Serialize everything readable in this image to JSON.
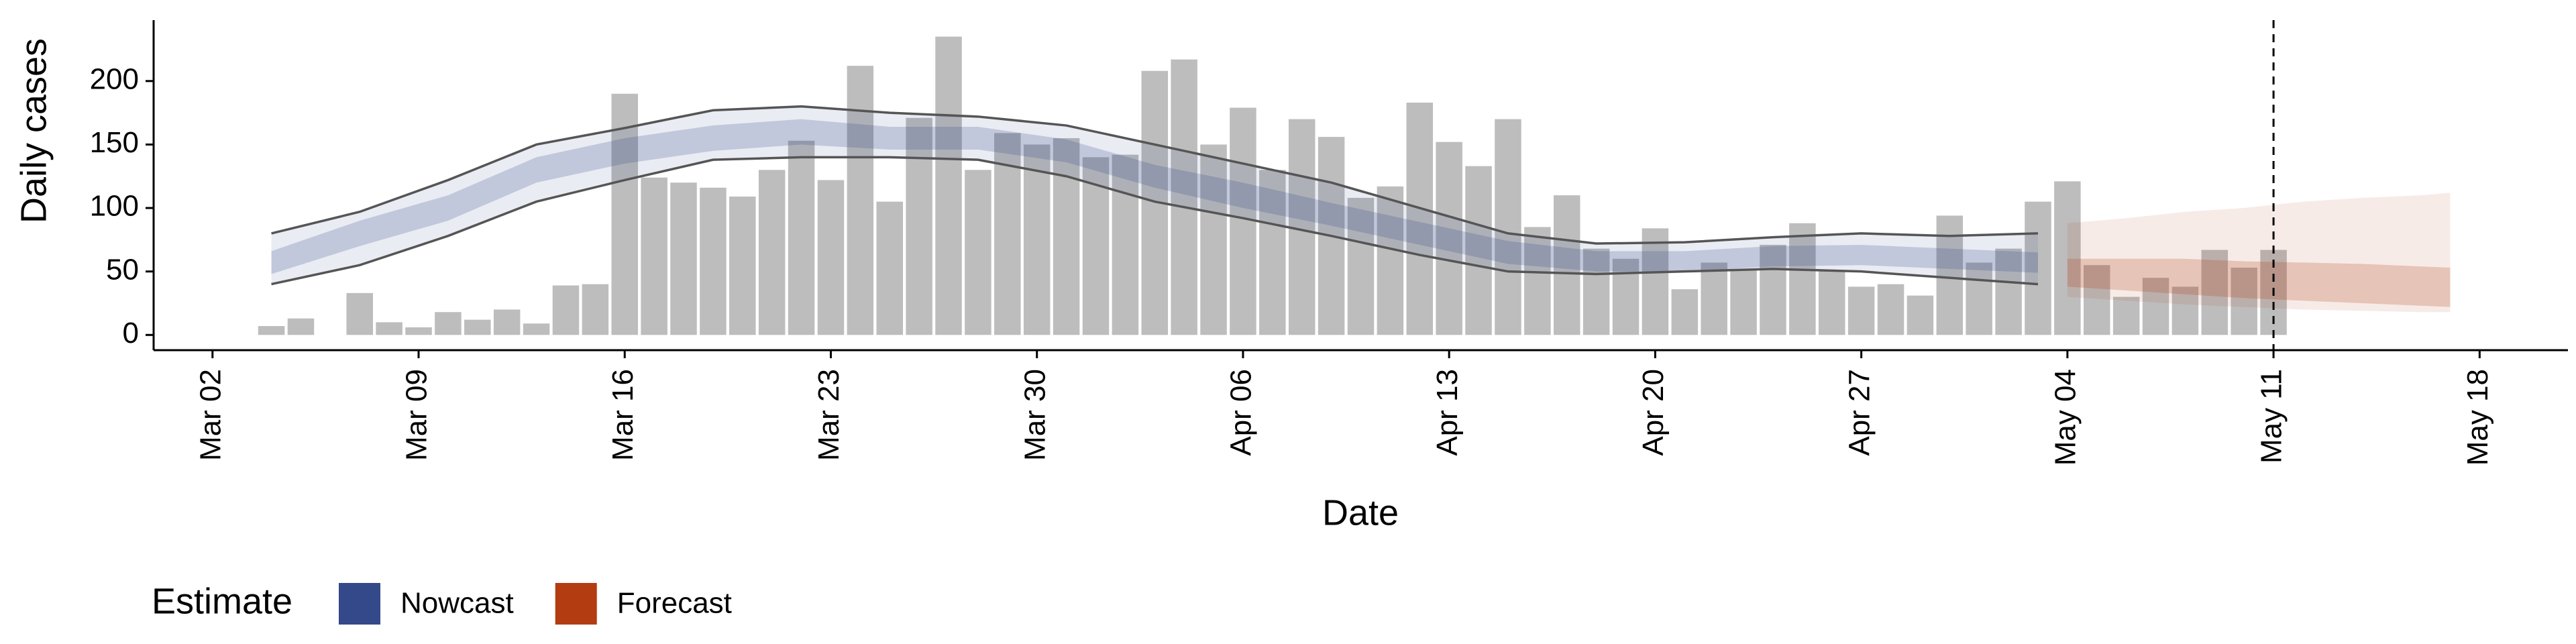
{
  "chart_data": {
    "type": "bar",
    "x_label": "Date",
    "y_label": "Daily cases",
    "xlim": [
      "Feb 29",
      "May 21"
    ],
    "xticks": [
      "Mar 02",
      "Mar 09",
      "Mar 16",
      "Mar 23",
      "Mar 30",
      "Apr 06",
      "Apr 13",
      "Apr 20",
      "Apr 27",
      "May 04",
      "May 11",
      "May 18"
    ],
    "ylim": [
      -12,
      248
    ],
    "yticks": [
      0,
      50,
      100,
      150,
      200
    ],
    "vline": "May 11",
    "bars": {
      "color": "#bdbdbd",
      "x": [
        "Mar 04",
        "Mar 05",
        "Mar 06",
        "Mar 07",
        "Mar 08",
        "Mar 09",
        "Mar 10",
        "Mar 11",
        "Mar 12",
        "Mar 13",
        "Mar 14",
        "Mar 15",
        "Mar 16",
        "Mar 17",
        "Mar 18",
        "Mar 19",
        "Mar 20",
        "Mar 21",
        "Mar 22",
        "Mar 23",
        "Mar 24",
        "Mar 25",
        "Mar 26",
        "Mar 27",
        "Mar 28",
        "Mar 29",
        "Mar 30",
        "Mar 31",
        "Apr 01",
        "Apr 02",
        "Apr 03",
        "Apr 04",
        "Apr 05",
        "Apr 06",
        "Apr 07",
        "Apr 08",
        "Apr 09",
        "Apr 10",
        "Apr 11",
        "Apr 12",
        "Apr 13",
        "Apr 14",
        "Apr 15",
        "Apr 16",
        "Apr 17",
        "Apr 18",
        "Apr 19",
        "Apr 20",
        "Apr 21",
        "Apr 22",
        "Apr 23",
        "Apr 24",
        "Apr 25",
        "Apr 26",
        "Apr 27",
        "Apr 28",
        "Apr 29",
        "Apr 30",
        "May 01",
        "May 02",
        "May 03",
        "May 04",
        "May 05",
        "May 06",
        "May 07",
        "May 08",
        "May 09",
        "May 10",
        "May 11"
      ],
      "values": [
        7,
        13,
        null,
        33,
        10,
        6,
        18,
        12,
        20,
        9,
        39,
        40,
        190,
        124,
        120,
        116,
        109,
        130,
        153,
        122,
        212,
        105,
        171,
        235,
        130,
        159,
        150,
        155,
        140,
        142,
        208,
        217,
        150,
        179,
        130,
        170,
        156,
        108,
        117,
        183,
        152,
        133,
        170,
        85,
        110,
        68,
        60,
        84,
        36,
        57,
        52,
        71,
        88,
        51,
        38,
        40,
        31,
        94,
        57,
        68,
        105,
        121,
        55,
        30,
        45,
        38,
        67,
        53,
        67
      ]
    },
    "legend_title": "Estimate",
    "series": [
      {
        "name": "Nowcast",
        "color": "#34498a",
        "outline_color": "#555555",
        "x": [
          "Mar 04",
          "Mar 07",
          "Mar 10",
          "Mar 13",
          "Mar 16",
          "Mar 19",
          "Mar 22",
          "Mar 25",
          "Mar 28",
          "Mar 31",
          "Apr 03",
          "Apr 06",
          "Apr 09",
          "Apr 12",
          "Apr 15",
          "Apr 18",
          "Apr 21",
          "Apr 24",
          "Apr 27",
          "Apr 30",
          "May 03"
        ],
        "lower_90": [
          40,
          55,
          78,
          105,
          122,
          138,
          140,
          140,
          138,
          125,
          105,
          92,
          78,
          63,
          50,
          48,
          50,
          52,
          50,
          45,
          40
        ],
        "upper_90": [
          80,
          97,
          122,
          150,
          163,
          177,
          180,
          175,
          172,
          165,
          150,
          135,
          120,
          100,
          80,
          72,
          73,
          77,
          80,
          78,
          80
        ],
        "lower_50": [
          48,
          70,
          90,
          120,
          135,
          145,
          150,
          146,
          146,
          136,
          116,
          100,
          86,
          71,
          56,
          50,
          50,
          54,
          55,
          52,
          49
        ],
        "upper_50": [
          66,
          90,
          110,
          140,
          155,
          165,
          170,
          164,
          164,
          154,
          134,
          120,
          104,
          89,
          74,
          66,
          66,
          70,
          71,
          68,
          65
        ]
      },
      {
        "name": "Forecast",
        "color": "#b33c10",
        "x": [
          "May 04",
          "May 06",
          "May 08",
          "May 10",
          "May 12",
          "May 14",
          "May 16",
          "May 17"
        ],
        "lower_90": [
          30,
          27,
          24,
          22,
          20,
          19,
          18,
          18
        ],
        "upper_90": [
          88,
          92,
          97,
          100,
          105,
          108,
          110,
          112
        ],
        "lower_50": [
          38,
          35,
          32,
          29,
          27,
          25,
          23,
          22
        ],
        "upper_50": [
          60,
          60,
          60,
          58,
          57,
          56,
          54,
          53
        ]
      }
    ]
  }
}
